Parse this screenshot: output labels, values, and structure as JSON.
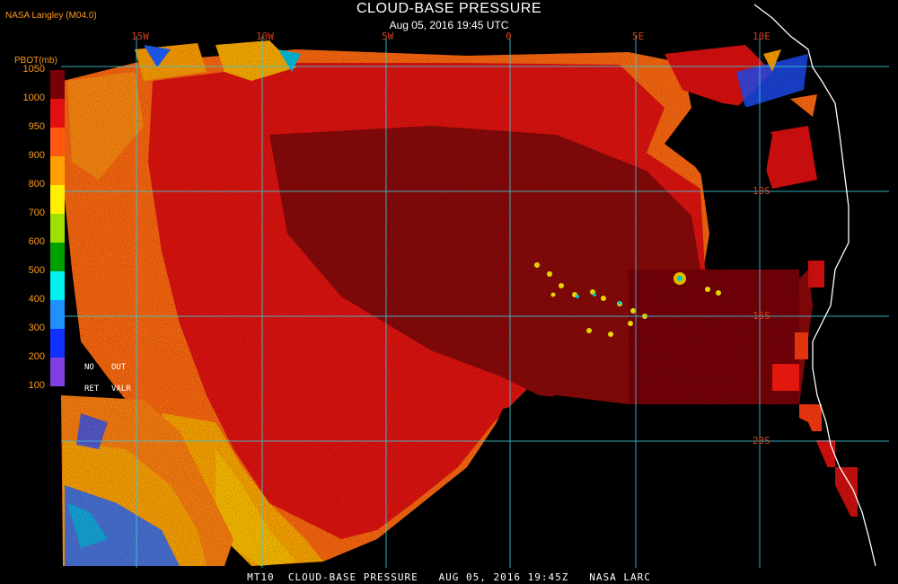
{
  "header": {
    "org": "NASA Langley (M04.0)",
    "title": "CLOUD-BASE PRESSURE",
    "subtitle": "Aug 05, 2016 19:45 UTC"
  },
  "grid": {
    "lon_labels": [
      "15W",
      "10W",
      "5W",
      "0",
      "5E",
      "10E"
    ],
    "lat_labels": [
      "10S",
      "15S",
      "20S"
    ]
  },
  "legend": {
    "title": "PBOT(mb)",
    "ticks": [
      "1050",
      "1000",
      "950",
      "900",
      "800",
      "700",
      "600",
      "500",
      "400",
      "300",
      "200",
      "100"
    ],
    "colors": [
      "#7a0008",
      "#e01010",
      "#ff5a10",
      "#ffa000",
      "#fff000",
      "#a0e000",
      "#00a000",
      "#00f0f0",
      "#2090ff",
      "#1030ff",
      "#8040e0"
    ],
    "no_label": "NO",
    "out_label": "OUT",
    "ret_label": "RET",
    "valr_label": "VALR"
  },
  "footer": {
    "text": "MT10  CLOUD-BASE PRESSURE   AUG 05, 2016 19:45Z   NASA LARC"
  },
  "colors": {
    "grid_line": "#40c8d8",
    "coast": "#ffffff",
    "label_text": "#ff9a1e"
  }
}
